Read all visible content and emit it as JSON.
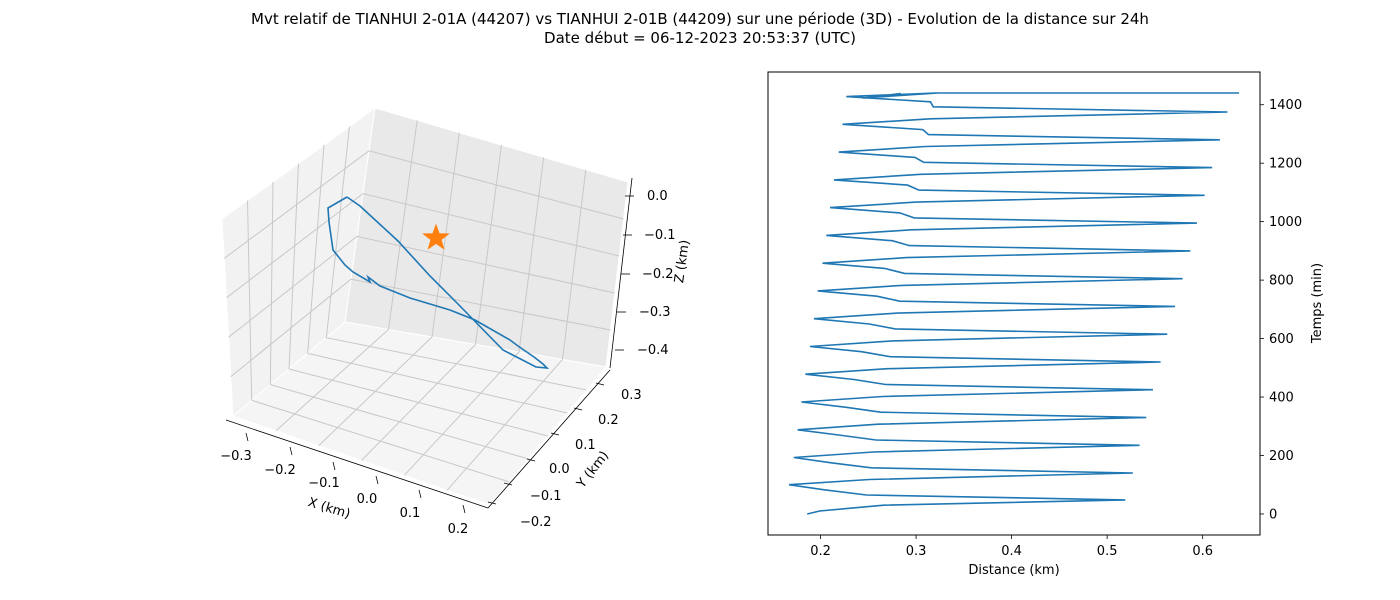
{
  "figure": {
    "title_line1": "Mvt relatif de TIANHUI 2-01A (44207) vs TIANHUI 2-01B (44209) sur une période (3D) - Evolution de la distance sur 24h",
    "title_line2": "Date début = 06-12-2023 20:53:37 (UTC)"
  },
  "colors": {
    "series": "#1f77b4",
    "marker": "#ff7f0e",
    "pane": "#f2f2f2",
    "grid": "#c8c8c8"
  },
  "chart_data": [
    {
      "type": "line3d",
      "xlabel": "X (km)",
      "ylabel": "Y (km)",
      "zlabel": "Z (km)",
      "x_ticks": [
        "−0.3",
        "−0.2",
        "−0.1",
        "0.0",
        "0.1",
        "0.2"
      ],
      "y_ticks": [
        "−0.2",
        "−0.1",
        "0.0",
        "0.1",
        "0.2",
        "0.3"
      ],
      "z_ticks": [
        "0.0",
        "−0.1",
        "−0.2",
        "−0.3",
        "−0.4"
      ],
      "grid": true,
      "marker": {
        "shape": "star",
        "x": 0,
        "y": 0,
        "z": 0
      }
    },
    {
      "type": "line",
      "xlabel": "Distance (km)",
      "ylabel": "Temps (min)",
      "yaxis_side": "right",
      "xlim": [
        0.145,
        0.66
      ],
      "ylim": [
        -72,
        1512
      ],
      "x_ticks": [
        "0.2",
        "0.3",
        "0.4",
        "0.5",
        "0.6"
      ],
      "x_tick_values": [
        0.2,
        0.3,
        0.4,
        0.5,
        0.6
      ],
      "y_ticks": [
        "0",
        "200",
        "400",
        "600",
        "800",
        "1000",
        "1200",
        "1400"
      ],
      "y_tick_values": [
        0,
        200,
        400,
        600,
        800,
        1000,
        1200,
        1400
      ],
      "series": [
        {
          "x": [
            0.186,
            0.199,
            0.266,
            0.519,
            0.248,
            0.203,
            0.167,
            0.251,
            0.527,
            0.253,
            0.211,
            0.172,
            0.255,
            0.534,
            0.258,
            0.219,
            0.176,
            0.26,
            0.541,
            0.263,
            0.227,
            0.18,
            0.265,
            0.548,
            0.268,
            0.235,
            0.184,
            0.27,
            0.556,
            0.273,
            0.243,
            0.189,
            0.275,
            0.563,
            0.278,
            0.251,
            0.193,
            0.28,
            0.571,
            0.283,
            0.259,
            0.197,
            0.285,
            0.579,
            0.288,
            0.267,
            0.202,
            0.29,
            0.587,
            0.293,
            0.275,
            0.206,
            0.295,
            0.594,
            0.298,
            0.283,
            0.21,
            0.3,
            0.602,
            0.303,
            0.291,
            0.214,
            0.305,
            0.61,
            0.308,
            0.299,
            0.219,
            0.31,
            0.618,
            0.313,
            0.307,
            0.223,
            0.315,
            0.626,
            0.318,
            0.315,
            0.227,
            0.32,
            0.638,
            0.323,
            0.244,
            0.284
          ],
          "y": [
            0,
            10,
            30,
            48,
            65,
            83,
            100,
            118,
            140,
            158,
            175,
            193,
            212,
            235,
            253,
            270,
            288,
            307,
            330,
            348,
            365,
            383,
            402,
            425,
            443,
            460,
            478,
            497,
            520,
            538,
            555,
            573,
            592,
            615,
            633,
            650,
            668,
            687,
            710,
            728,
            745,
            763,
            782,
            805,
            823,
            840,
            858,
            877,
            900,
            918,
            935,
            953,
            972,
            995,
            1013,
            1030,
            1048,
            1067,
            1090,
            1108,
            1125,
            1143,
            1162,
            1185,
            1203,
            1220,
            1238,
            1257,
            1280,
            1298,
            1315,
            1333,
            1352,
            1375,
            1393,
            1410,
            1428,
            1440,
            1440,
            1440,
            1423,
            1438
          ]
        }
      ]
    }
  ]
}
